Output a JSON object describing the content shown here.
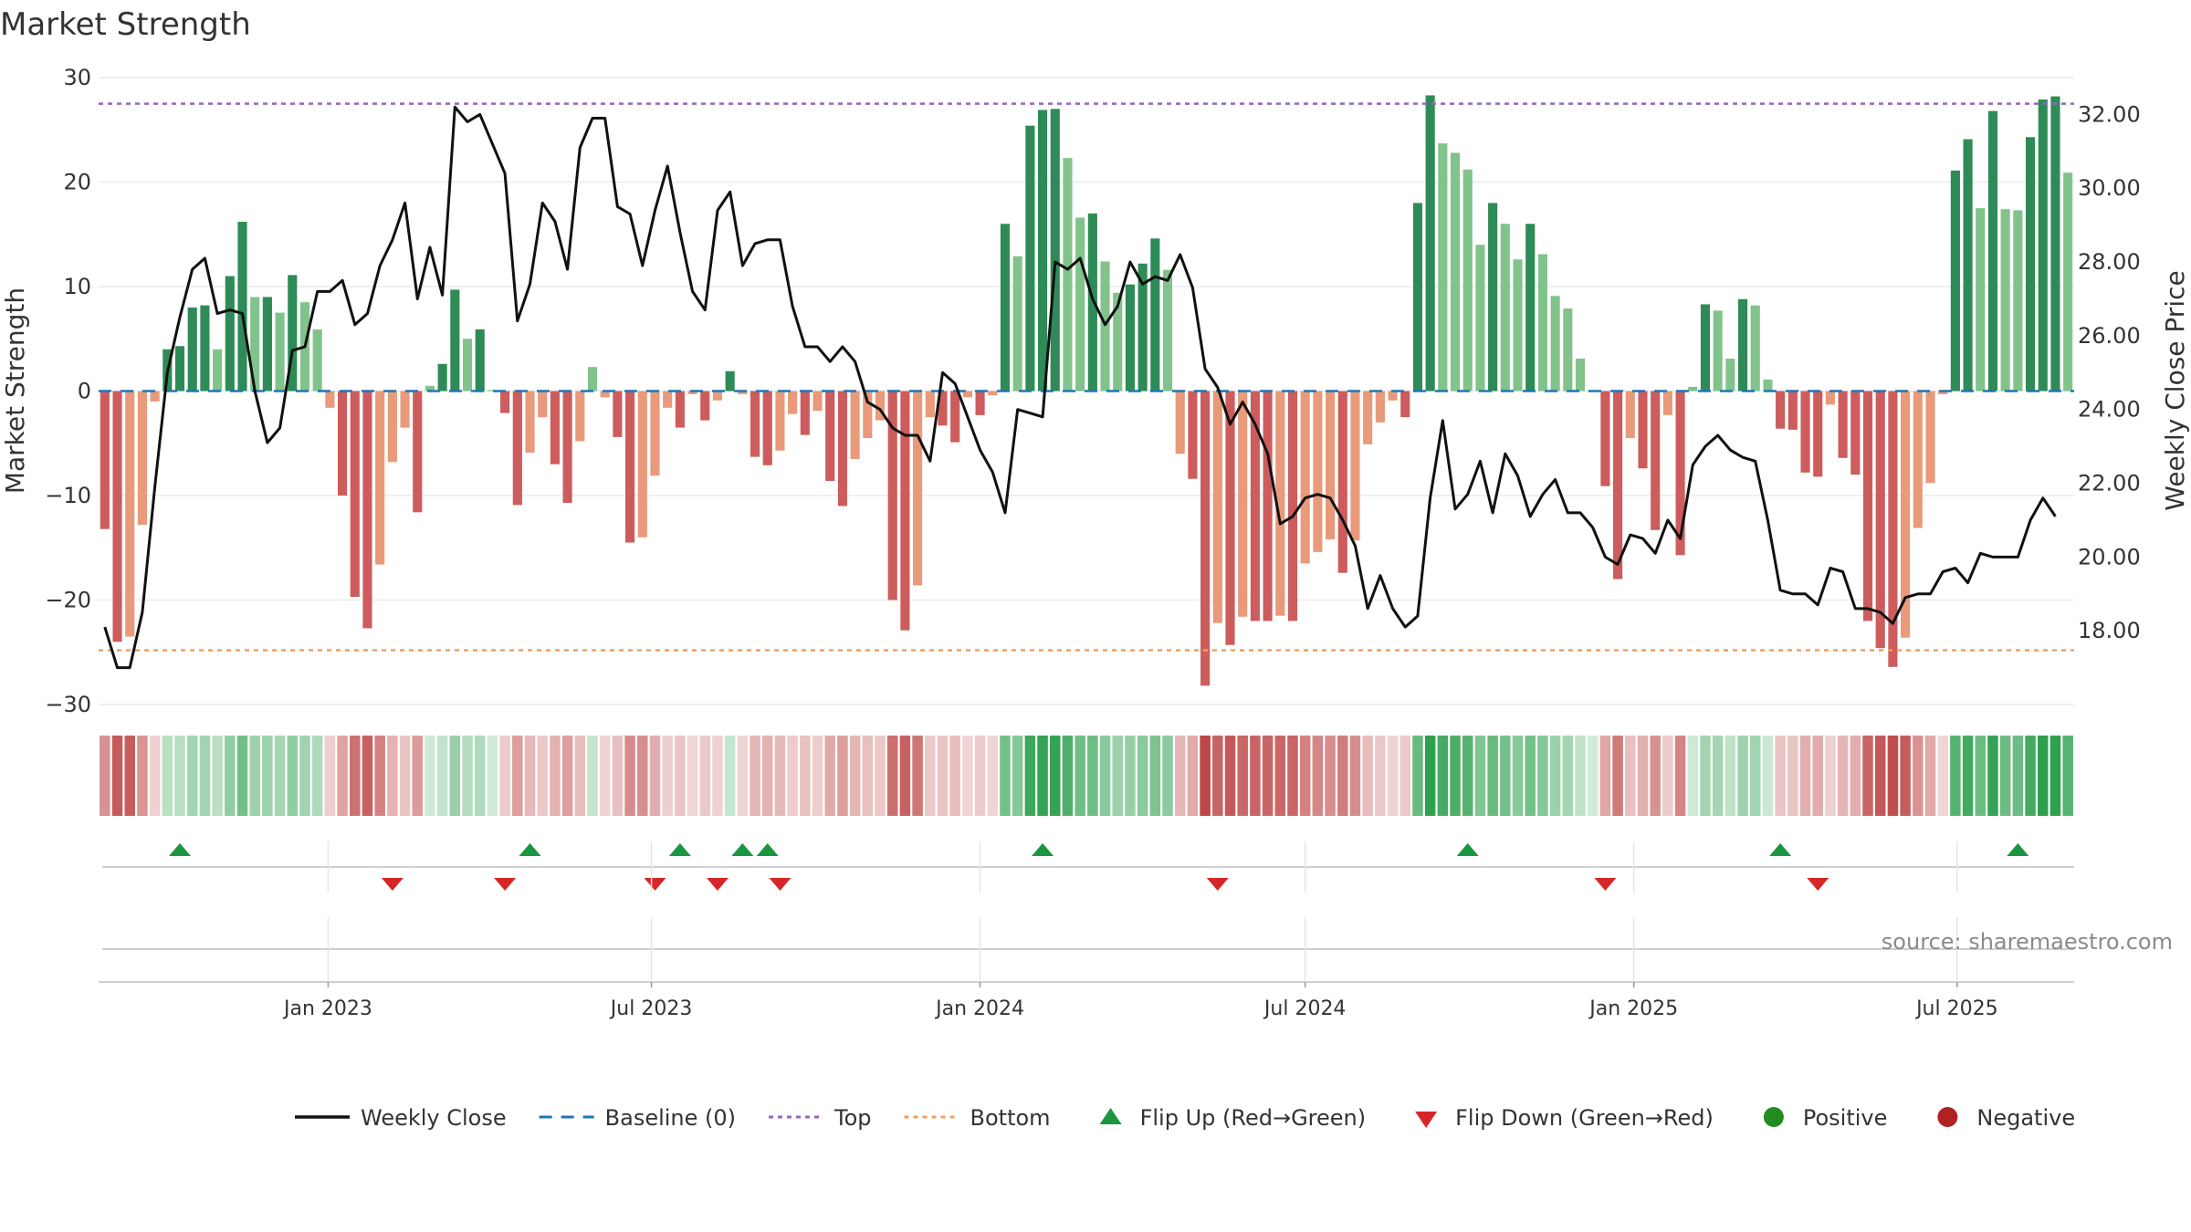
{
  "title": "Market Strength",
  "source_note": "source: sharemaestro.com",
  "colors": {
    "pos_dark": "#2e8b57",
    "pos_light": "#82c38c",
    "neg_dark": "#cd5c5c",
    "neg_light": "#e89a7a",
    "close": "#111111",
    "baseline": "#1f77b4",
    "top": "#9467bd",
    "bottom": "#f0a060",
    "flip_up": "#1a9641",
    "flip_down": "#d62728",
    "positive": "#228b22",
    "negative": "#b22222"
  },
  "chart_data": {
    "type": "bar+line",
    "title": "Market Strength",
    "ylabel_left": "Market Strength",
    "ylabel_right": "Weekly Close Price",
    "ylim_left": [
      -30,
      30
    ],
    "ylim_right": [
      16.0,
      33.0
    ],
    "y_ticks_left": [
      30,
      20,
      10,
      0,
      -10,
      -20,
      -30
    ],
    "y_tick_labels_left": [
      "30",
      "20",
      "10",
      "0",
      "−10",
      "−20",
      "−30"
    ],
    "y_ticks_right": [
      "18.00",
      "20.00",
      "22.00",
      "24.00",
      "26.00",
      "28.00",
      "30.00",
      "32.00"
    ],
    "top_line": 27.5,
    "bottom_line": -24.8,
    "x_start": "2022-08-29",
    "week_step_days": 7,
    "x_tick_labels": [
      "Jan 2023",
      "Jul 2023",
      "Jan 2024",
      "Jul 2024",
      "Jan 2025",
      "Jul 2025"
    ],
    "x_tick_dates": [
      "2023-01-01",
      "2023-07-01",
      "2024-01-01",
      "2024-07-01",
      "2025-01-01",
      "2025-07-01"
    ],
    "strength": [
      -13.2,
      -24,
      -23.5,
      -12.8,
      -1,
      4,
      4.3,
      8,
      8.2,
      4,
      11,
      16.2,
      9,
      9,
      7.5,
      11.1,
      8.5,
      5.9,
      -1.6,
      -10,
      -19.7,
      -22.7,
      -16.6,
      -6.8,
      -3.5,
      -11.6,
      0.5,
      2.6,
      9.7,
      5,
      5.9,
      0.1,
      -2.1,
      -10.9,
      -5.9,
      -2.5,
      -7,
      -10.7,
      -4.8,
      2.3,
      -0.6,
      -4.4,
      -14.5,
      -14,
      -8.1,
      -1.6,
      -3.5,
      -0.3,
      -2.8,
      -0.9,
      1.9,
      -0.3,
      -6.3,
      -7.1,
      -5.7,
      -2.2,
      -4.2,
      -1.9,
      -8.6,
      -11,
      -6.5,
      -4.5,
      -2.8,
      -20,
      -22.9,
      -18.6,
      -2.5,
      -3.3,
      -4.9,
      -0.6,
      -2.3,
      -0.4,
      16,
      12.9,
      25.4,
      26.9,
      27,
      22.3,
      16.6,
      17,
      12.4,
      9.4,
      10.2,
      12.2,
      14.6,
      11.6,
      -6,
      -8.4,
      -28.2,
      -22.2,
      -24.3,
      -21.6,
      -22,
      -22,
      -21.5,
      -22,
      -16.5,
      -15.4,
      -14.2,
      -17.4,
      -14.3,
      -5.1,
      -3,
      -0.9,
      -2.5,
      18,
      28.3,
      23.7,
      22.8,
      21.2,
      14,
      18,
      16,
      12.6,
      16,
      13.1,
      9.1,
      7.9,
      3.1,
      0,
      -9.1,
      -18,
      -4.5,
      -7.4,
      -13.3,
      -2.3,
      -15.7,
      0.4,
      8.3,
      7.7,
      3.1,
      8.8,
      8.2,
      1.1,
      -3.6,
      -3.7,
      -7.8,
      -8.2,
      -1.3,
      -6.4,
      -8,
      -22,
      -24.6,
      -26.4,
      -23.6,
      -13.1,
      -8.8,
      -0.3,
      21.1,
      24.1,
      17.5,
      26.8,
      17.4,
      17.3,
      24.3,
      27.9,
      28.2,
      20.9
    ],
    "weekly_close": [
      18.1,
      17.0,
      17.0,
      18.5,
      21.9,
      25,
      26.5,
      27.8,
      28.1,
      26.6,
      26.7,
      26.6,
      24.5,
      23.1,
      23.5,
      25.6,
      25.7,
      27.2,
      27.2,
      27.5,
      26.3,
      26.6,
      27.9,
      28.6,
      29.6,
      27,
      28.4,
      27.1,
      32.2,
      31.8,
      32.0,
      31.2,
      30.4,
      26.4,
      27.4,
      29.6,
      29.1,
      27.8,
      31.1,
      31.9,
      31.9,
      29.5,
      29.3,
      27.9,
      29.4,
      30.6,
      28.8,
      27.2,
      26.7,
      29.4,
      29.9,
      27.9,
      28.5,
      28.6,
      28.6,
      26.8,
      25.7,
      25.7,
      25.3,
      25.7,
      25.3,
      24.2,
      24,
      23.5,
      23.3,
      23.3,
      22.6,
      25.0,
      24.7,
      23.8,
      22.9,
      22.3,
      21.2,
      24,
      23.9,
      23.8,
      28,
      27.8,
      28.1,
      27,
      26.3,
      26.8,
      28,
      27.4,
      27.6,
      27.5,
      28.2,
      27.3,
      25.1,
      24.6,
      23.6,
      24.2,
      23.6,
      22.8,
      20.9,
      21.1,
      21.6,
      21.7,
      21.6,
      21,
      20.3,
      18.6,
      19.5,
      18.6,
      18.1,
      18.4,
      21.6,
      23.7,
      21.3,
      21.7,
      22.6,
      21.2,
      22.8,
      22.2,
      21.1,
      21.7,
      22.1,
      21.2,
      21.2,
      20.8,
      20,
      19.8,
      20.6,
      20.5,
      20.1,
      21.0,
      20.5,
      22.5,
      23,
      23.3,
      22.9,
      22.7,
      22.6,
      21,
      19.1,
      19,
      19,
      18.7,
      19.7,
      19.6,
      18.6,
      18.6,
      18.5,
      18.2,
      18.9,
      19.0,
      19,
      19.6,
      19.7,
      19.3,
      20.1,
      20,
      20,
      20,
      21.0,
      21.6,
      21.1
    ],
    "flip_up": [
      "2022-10-10",
      "2023-04-24",
      "2023-07-17",
      "2023-08-21",
      "2023-09-04",
      "2024-02-05",
      "2024-09-30",
      "2025-03-24",
      "2025-08-04"
    ],
    "flip_down": [
      "2023-02-06",
      "2023-04-10",
      "2023-07-03",
      "2023-08-07",
      "2023-09-11",
      "2024-05-13",
      "2024-12-16",
      "2025-04-14"
    ],
    "legend": [
      {
        "label": "Weekly Close",
        "symbol": "line-solid"
      },
      {
        "label": "Baseline (0)",
        "symbol": "line-dash"
      },
      {
        "label": "Top",
        "symbol": "line-dot-purple"
      },
      {
        "label": "Bottom",
        "symbol": "line-dot-orange"
      },
      {
        "label": "Flip Up (Red→Green)",
        "symbol": "triangle-up"
      },
      {
        "label": "Flip Down (Green→Red)",
        "symbol": "triangle-down"
      },
      {
        "label": "Positive",
        "symbol": "circle-green"
      },
      {
        "label": "Negative",
        "symbol": "circle-red"
      }
    ],
    "legend_placement": "bottom",
    "grid": true
  }
}
